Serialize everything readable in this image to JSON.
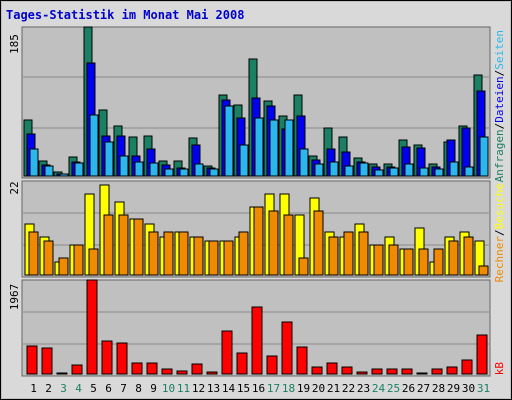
{
  "title": "Tages-Statistik im Monat Mai 2008",
  "colors": {
    "title": "#0000cc",
    "panel_bg": "#c0c0c0",
    "hits": "#1b8063",
    "files": "#0000ee",
    "pages": "#2bb7ee",
    "visits": "#ffff00",
    "sites": "#f08a00",
    "kbytes": "#ff0000",
    "day_label_weekday": "#000000",
    "day_label_weekend": "#1b8063"
  },
  "chart_data": [
    {
      "type": "bar",
      "panel": "top",
      "ymax_label": "185",
      "right_label": {
        "sep": "/",
        "series": [
          {
            "key": "hits",
            "label": "Anfragen"
          },
          {
            "key": "files",
            "label": "Dateien"
          },
          {
            "key": "pages",
            "label": "Seiten"
          }
        ]
      },
      "ylim": [
        0,
        185
      ],
      "categories": [
        "1",
        "2",
        "3",
        "4",
        "5",
        "6",
        "7",
        "8",
        "9",
        "10",
        "11",
        "12",
        "13",
        "14",
        "15",
        "16",
        "17",
        "18",
        "19",
        "20",
        "21",
        "22",
        "23",
        "24",
        "25",
        "26",
        "27",
        "28",
        "29",
        "30",
        "31"
      ],
      "series": [
        {
          "name": "Anfragen",
          "key": "hits",
          "values": [
            70,
            19,
            5,
            24,
            185,
            82,
            62,
            48,
            50,
            19,
            19,
            47,
            13,
            100,
            88,
            145,
            93,
            75,
            101,
            25,
            59,
            48,
            22,
            15,
            15,
            45,
            38,
            15,
            42,
            62,
            125
          ]
        },
        {
          "name": "Dateien",
          "key": "files",
          "values": [
            52,
            14,
            3,
            18,
            140,
            50,
            50,
            25,
            34,
            14,
            10,
            39,
            10,
            94,
            72,
            97,
            87,
            58,
            75,
            20,
            33,
            30,
            18,
            11,
            11,
            36,
            35,
            11,
            45,
            59,
            105
          ]
        },
        {
          "name": "Seiten",
          "key": "pages",
          "values": [
            33,
            13,
            3,
            16,
            76,
            42,
            25,
            17,
            16,
            9,
            9,
            15,
            9,
            87,
            38,
            72,
            69,
            69,
            34,
            15,
            17,
            12,
            16,
            7,
            10,
            15,
            10,
            9,
            17,
            11,
            49
          ]
        }
      ]
    },
    {
      "type": "bar",
      "panel": "middle",
      "ymax_label": "22",
      "right_label": {
        "sep": "/",
        "series": [
          {
            "key": "sites",
            "label": "Rechner"
          },
          {
            "key": "visits",
            "label": "Besuche"
          }
        ]
      },
      "ylim": [
        0,
        22
      ],
      "categories": [
        "1",
        "2",
        "3",
        "4",
        "5",
        "6",
        "7",
        "8",
        "9",
        "10",
        "11",
        "12",
        "13",
        "14",
        "15",
        "16",
        "17",
        "18",
        "19",
        "20",
        "21",
        "22",
        "23",
        "24",
        "25",
        "26",
        "27",
        "28",
        "29",
        "30",
        "31"
      ],
      "series": [
        {
          "name": "Besuche",
          "key": "visits",
          "values": [
            12,
            9,
            3,
            7,
            19,
            21,
            17,
            13,
            12,
            9,
            10,
            9,
            8,
            8,
            9,
            16,
            19,
            19,
            14,
            18,
            10,
            9,
            12,
            7,
            9,
            6,
            11,
            3,
            9,
            10,
            8
          ]
        },
        {
          "name": "Rechner",
          "key": "sites",
          "values": [
            10,
            8,
            4,
            7,
            6,
            14,
            14,
            13,
            10,
            10,
            10,
            9,
            8,
            8,
            10,
            16,
            15,
            14,
            4,
            15,
            9,
            10,
            10,
            7,
            7,
            6,
            6,
            6,
            8,
            9,
            2
          ]
        }
      ]
    },
    {
      "type": "bar",
      "panel": "bottom",
      "ymax_label": "1967",
      "right_label": {
        "sep": "",
        "series": [
          {
            "key": "kbytes",
            "label": "kB"
          }
        ]
      },
      "ylim": [
        0,
        1967
      ],
      "categories": [
        "1",
        "2",
        "3",
        "4",
        "5",
        "6",
        "7",
        "8",
        "9",
        "10",
        "11",
        "12",
        "13",
        "14",
        "15",
        "16",
        "17",
        "18",
        "19",
        "20",
        "21",
        "22",
        "23",
        "24",
        "25",
        "26",
        "27",
        "28",
        "29",
        "30",
        "31"
      ],
      "series": [
        {
          "name": "kB",
          "key": "kbytes",
          "values": [
            590,
            550,
            30,
            180,
            1967,
            700,
            640,
            240,
            240,
            110,
            60,
            210,
            50,
            890,
            430,
            1400,
            380,
            1080,
            570,
            150,
            230,
            150,
            50,
            100,
            100,
            100,
            30,
            100,
            150,
            300,
            810
          ]
        }
      ]
    }
  ],
  "day_labels": [
    {
      "day": "1",
      "weekend": false
    },
    {
      "day": "2",
      "weekend": false
    },
    {
      "day": "3",
      "weekend": true
    },
    {
      "day": "4",
      "weekend": true
    },
    {
      "day": "5",
      "weekend": false
    },
    {
      "day": "6",
      "weekend": false
    },
    {
      "day": "7",
      "weekend": false
    },
    {
      "day": "8",
      "weekend": false
    },
    {
      "day": "9",
      "weekend": false
    },
    {
      "day": "10",
      "weekend": true
    },
    {
      "day": "11",
      "weekend": true
    },
    {
      "day": "12",
      "weekend": false
    },
    {
      "day": "13",
      "weekend": false
    },
    {
      "day": "14",
      "weekend": false
    },
    {
      "day": "15",
      "weekend": false
    },
    {
      "day": "16",
      "weekend": false
    },
    {
      "day": "17",
      "weekend": true
    },
    {
      "day": "18",
      "weekend": true
    },
    {
      "day": "19",
      "weekend": false
    },
    {
      "day": "20",
      "weekend": false
    },
    {
      "day": "21",
      "weekend": false
    },
    {
      "day": "22",
      "weekend": false
    },
    {
      "day": "23",
      "weekend": false
    },
    {
      "day": "24",
      "weekend": true
    },
    {
      "day": "25",
      "weekend": true
    },
    {
      "day": "26",
      "weekend": false
    },
    {
      "day": "27",
      "weekend": false
    },
    {
      "day": "28",
      "weekend": false
    },
    {
      "day": "29",
      "weekend": false
    },
    {
      "day": "30",
      "weekend": false
    },
    {
      "day": "31",
      "weekend": true
    }
  ]
}
